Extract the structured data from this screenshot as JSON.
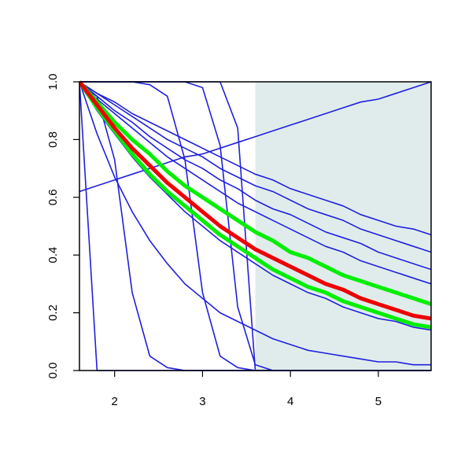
{
  "chart_data": {
    "type": "line",
    "x": [
      1.6,
      1.8,
      2.0,
      2.2,
      2.4,
      2.6,
      2.8,
      3.0,
      3.2,
      3.4,
      3.6,
      3.8,
      4.0,
      4.2,
      4.4,
      4.6,
      4.8,
      5.0,
      5.2,
      5.4,
      5.6
    ],
    "xlim": [
      1.6,
      5.6
    ],
    "ylim": [
      0,
      1
    ],
    "xticks": [
      2,
      3,
      4,
      5
    ],
    "yticks": [
      {
        "value": 0,
        "label": "0.0"
      },
      {
        "value": 0.2,
        "label": "0.2"
      },
      {
        "value": 0.4,
        "label": "0.4"
      },
      {
        "value": 0.6,
        "label": "0.6"
      },
      {
        "value": 0.8,
        "label": "0.8"
      },
      {
        "value": 1,
        "label": "1.0"
      }
    ],
    "shaded_region": {
      "xlim": [
        3.6,
        5.6
      ],
      "color": "#e0ecec"
    },
    "series": [
      {
        "color": "#2020dd",
        "values": [
          1,
          0.96,
          0.93,
          0.89,
          0.86,
          0.83,
          0.8,
          0.77,
          0.74,
          0.71,
          0.68,
          0.66,
          0.63,
          0.61,
          0.59,
          0.57,
          0.54,
          0.52,
          0.5,
          0.49,
          0.47
        ]
      },
      {
        "color": "#2020dd",
        "values": [
          1,
          0.96,
          0.92,
          0.88,
          0.84,
          0.8,
          0.77,
          0.74,
          0.7,
          0.67,
          0.64,
          0.62,
          0.59,
          0.56,
          0.54,
          0.52,
          0.49,
          0.47,
          0.45,
          0.43,
          0.41
        ]
      },
      {
        "color": "#2020dd",
        "values": [
          1,
          0.95,
          0.9,
          0.86,
          0.81,
          0.77,
          0.73,
          0.7,
          0.66,
          0.63,
          0.59,
          0.56,
          0.54,
          0.51,
          0.48,
          0.46,
          0.44,
          0.41,
          0.39,
          0.37,
          0.35
        ]
      },
      {
        "color": "#2020dd",
        "values": [
          1,
          0.94,
          0.89,
          0.84,
          0.79,
          0.74,
          0.7,
          0.66,
          0.62,
          0.58,
          0.55,
          0.52,
          0.49,
          0.46,
          0.43,
          0.41,
          0.38,
          0.36,
          0.34,
          0.32,
          0.3
        ]
      },
      {
        "color": "#2020dd",
        "values": [
          1,
          0.9,
          0.82,
          0.74,
          0.67,
          0.61,
          0.55,
          0.5,
          0.45,
          0.41,
          0.37,
          0.33,
          0.3,
          0.27,
          0.25,
          0.22,
          0.2,
          0.18,
          0.17,
          0.15,
          0.14
        ]
      },
      {
        "color": "#2020dd",
        "values": [
          1,
          0.82,
          0.67,
          0.55,
          0.45,
          0.37,
          0.3,
          0.25,
          0.2,
          0.17,
          0.14,
          0.11,
          0.09,
          0.07,
          0.06,
          0.05,
          0.04,
          0.03,
          0.03,
          0.02,
          0.02
        ]
      },
      {
        "color": "#2020dd",
        "values": [
          0.62,
          0.64,
          0.66,
          0.68,
          0.7,
          0.72,
          0.74,
          0.75,
          0.77,
          0.79,
          0.81,
          0.83,
          0.85,
          0.87,
          0.89,
          0.91,
          0.93,
          0.94,
          0.96,
          0.98,
          1.0
        ]
      },
      {
        "color": "#2020dd",
        "values": [
          0.99,
          0.95,
          0.73,
          0.27,
          0.05,
          0.01,
          0,
          0,
          0,
          0,
          0,
          0,
          0,
          0,
          0,
          0,
          0,
          0,
          0,
          0,
          0
        ]
      },
      {
        "color": "#2020dd",
        "values": [
          1,
          1,
          1,
          1,
          0.99,
          0.95,
          0.73,
          0.27,
          0.05,
          0.01,
          0,
          0,
          0,
          0,
          0,
          0,
          0,
          0,
          0,
          0,
          0
        ]
      },
      {
        "color": "#2020dd",
        "values": [
          1,
          1,
          1,
          1,
          1,
          1,
          1.0,
          0.98,
          0.78,
          0.22,
          0.02,
          0,
          0,
          0,
          0,
          0,
          0,
          0,
          0,
          0,
          0
        ]
      },
      {
        "color": "#2020dd",
        "values": [
          1,
          1,
          1,
          1,
          1,
          1,
          1,
          1,
          1,
          0.84,
          0,
          0,
          0,
          0,
          0,
          0,
          0,
          0,
          0,
          0,
          0
        ]
      },
      {
        "color": "#2020dd",
        "values": [
          1,
          0,
          0,
          0,
          0,
          0,
          0,
          0,
          0,
          0,
          0,
          0,
          0,
          0,
          0,
          0,
          0,
          0,
          0,
          0,
          0
        ]
      },
      {
        "color": "#00ee00",
        "highlight": true,
        "values": [
          1,
          0.93,
          0.86,
          0.8,
          0.75,
          0.69,
          0.64,
          0.6,
          0.56,
          0.52,
          0.48,
          0.45,
          0.41,
          0.39,
          0.36,
          0.33,
          0.31,
          0.29,
          0.27,
          0.25,
          0.23
        ]
      },
      {
        "color": "#00ee00",
        "highlight": true,
        "values": [
          1,
          0.91,
          0.83,
          0.75,
          0.68,
          0.62,
          0.57,
          0.52,
          0.47,
          0.43,
          0.39,
          0.35,
          0.32,
          0.29,
          0.27,
          0.24,
          0.22,
          0.2,
          0.18,
          0.16,
          0.15
        ]
      },
      {
        "color": "#ee0000",
        "highlight": true,
        "values": [
          1,
          0.92,
          0.84,
          0.77,
          0.71,
          0.65,
          0.6,
          0.55,
          0.5,
          0.46,
          0.42,
          0.39,
          0.36,
          0.33,
          0.3,
          0.28,
          0.25,
          0.23,
          0.21,
          0.19,
          0.18
        ]
      }
    ]
  }
}
